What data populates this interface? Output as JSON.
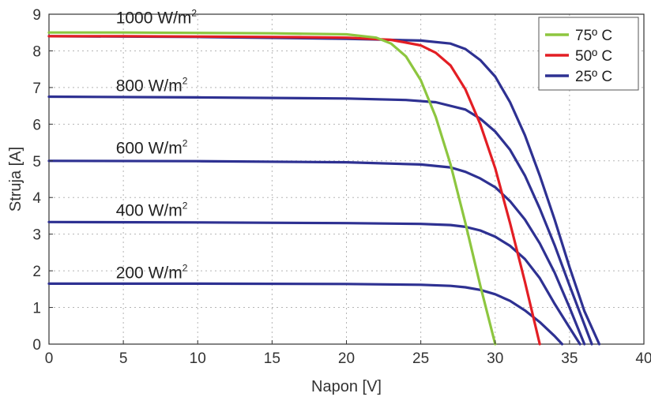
{
  "chart_data": {
    "type": "line",
    "xlabel": "Napon [V]",
    "ylabel": "Struja [A]",
    "xlim": [
      0,
      40
    ],
    "ylim": [
      0,
      9
    ],
    "x_ticks": [
      0,
      5,
      10,
      15,
      20,
      25,
      30,
      35,
      40
    ],
    "y_ticks": [
      0,
      1,
      2,
      3,
      4,
      5,
      6,
      7,
      8,
      9
    ],
    "x_tick_labels": [
      "0",
      "5",
      "10",
      "15",
      "20",
      "25",
      "30",
      "35",
      "40"
    ],
    "y_tick_labels": [
      "0",
      "1",
      "2",
      "3",
      "4",
      "5",
      "6",
      "7",
      "8",
      "9"
    ],
    "grid": true,
    "legend_position": "top-right",
    "legend": [
      {
        "label": "75º C",
        "color": "#8dc63f"
      },
      {
        "label": "50º C",
        "color": "#e31e24"
      },
      {
        "label": "25º C",
        "color": "#2e3192"
      }
    ],
    "annotations": [
      {
        "text": "1000 W/m",
        "sup": "2",
        "x": 4.5,
        "y": 8.75
      },
      {
        "text": "800 W/m",
        "sup": "2",
        "x": 4.5,
        "y": 6.9
      },
      {
        "text": "600 W/m",
        "sup": "2",
        "x": 4.5,
        "y": 5.2
      },
      {
        "text": "400 W/m",
        "sup": "2",
        "x": 4.5,
        "y": 3.5
      },
      {
        "text": "200 W/m",
        "sup": "2",
        "x": 4.5,
        "y": 1.8
      }
    ],
    "series": [
      {
        "group": "75º C",
        "irradiance": "1000 W/m2",
        "color": "#8dc63f",
        "points": [
          [
            0,
            8.5
          ],
          [
            5,
            8.5
          ],
          [
            10,
            8.49
          ],
          [
            15,
            8.48
          ],
          [
            20,
            8.45
          ],
          [
            22,
            8.36
          ],
          [
            23,
            8.2
          ],
          [
            24,
            7.85
          ],
          [
            25,
            7.2
          ],
          [
            26,
            6.2
          ],
          [
            27,
            4.9
          ],
          [
            28,
            3.3
          ],
          [
            29,
            1.6
          ],
          [
            30,
            0
          ]
        ]
      },
      {
        "group": "50º C",
        "irradiance": "1000 W/m2",
        "color": "#e31e24",
        "points": [
          [
            0,
            8.4
          ],
          [
            5,
            8.4
          ],
          [
            10,
            8.39
          ],
          [
            15,
            8.38
          ],
          [
            20,
            8.36
          ],
          [
            23,
            8.3
          ],
          [
            25,
            8.15
          ],
          [
            26,
            7.95
          ],
          [
            27,
            7.6
          ],
          [
            28,
            6.95
          ],
          [
            29,
            6.0
          ],
          [
            30,
            4.8
          ],
          [
            31,
            3.3
          ],
          [
            32,
            1.7
          ],
          [
            33,
            0
          ]
        ]
      },
      {
        "group": "25º C",
        "irradiance": "1000 W/m2",
        "color": "#2e3192",
        "points": [
          [
            0,
            8.4
          ],
          [
            10,
            8.38
          ],
          [
            20,
            8.33
          ],
          [
            25,
            8.28
          ],
          [
            27,
            8.2
          ],
          [
            28,
            8.05
          ],
          [
            29,
            7.75
          ],
          [
            30,
            7.3
          ],
          [
            31,
            6.6
          ],
          [
            32,
            5.7
          ],
          [
            33,
            4.6
          ],
          [
            34,
            3.4
          ],
          [
            35,
            2.1
          ],
          [
            36,
            0.9
          ],
          [
            37,
            0
          ]
        ]
      },
      {
        "group": "25º C",
        "irradiance": "800 W/m2",
        "color": "#2e3192",
        "points": [
          [
            0,
            6.75
          ],
          [
            10,
            6.73
          ],
          [
            20,
            6.7
          ],
          [
            24,
            6.66
          ],
          [
            26,
            6.6
          ],
          [
            28,
            6.4
          ],
          [
            29,
            6.15
          ],
          [
            30,
            5.8
          ],
          [
            31,
            5.3
          ],
          [
            32,
            4.6
          ],
          [
            33,
            3.7
          ],
          [
            34,
            2.7
          ],
          [
            35,
            1.6
          ],
          [
            36.5,
            0
          ]
        ]
      },
      {
        "group": "25º C",
        "irradiance": "600 W/m2",
        "color": "#2e3192",
        "points": [
          [
            0,
            5.0
          ],
          [
            10,
            4.99
          ],
          [
            20,
            4.96
          ],
          [
            25,
            4.9
          ],
          [
            27,
            4.82
          ],
          [
            28,
            4.7
          ],
          [
            29,
            4.52
          ],
          [
            30,
            4.28
          ],
          [
            31,
            3.9
          ],
          [
            32,
            3.4
          ],
          [
            33,
            2.75
          ],
          [
            34,
            1.95
          ],
          [
            35,
            1.0
          ],
          [
            36,
            0
          ]
        ]
      },
      {
        "group": "25º C",
        "irradiance": "400 W/m2",
        "color": "#2e3192",
        "points": [
          [
            0,
            3.33
          ],
          [
            10,
            3.32
          ],
          [
            20,
            3.3
          ],
          [
            25,
            3.28
          ],
          [
            27,
            3.25
          ],
          [
            28,
            3.2
          ],
          [
            29,
            3.1
          ],
          [
            30,
            2.93
          ],
          [
            31,
            2.68
          ],
          [
            32,
            2.32
          ],
          [
            33,
            1.8
          ],
          [
            34,
            1.1
          ],
          [
            35,
            0.45
          ],
          [
            35.7,
            0
          ]
        ]
      },
      {
        "group": "25º C",
        "irradiance": "200 W/m2",
        "color": "#2e3192",
        "points": [
          [
            0,
            1.65
          ],
          [
            10,
            1.65
          ],
          [
            20,
            1.64
          ],
          [
            25,
            1.62
          ],
          [
            27,
            1.59
          ],
          [
            28,
            1.55
          ],
          [
            29,
            1.48
          ],
          [
            30,
            1.36
          ],
          [
            31,
            1.18
          ],
          [
            32,
            0.92
          ],
          [
            33,
            0.6
          ],
          [
            34,
            0.22
          ],
          [
            34.5,
            0
          ]
        ]
      }
    ]
  }
}
